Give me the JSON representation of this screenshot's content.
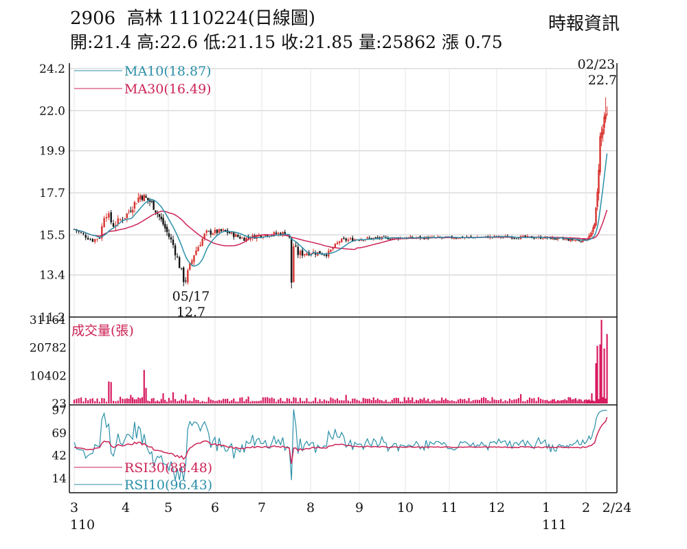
{
  "header": {
    "code": "2906",
    "name": "高林",
    "date_label": "1110224(日線圖)",
    "source": "時報資訊",
    "quote": {
      "open_label": "開:",
      "open": "21.4",
      "high_label": "高:",
      "high": "22.6",
      "low_label": "低:",
      "low": "21.15",
      "close_label": "收:",
      "close": "21.85",
      "volume_label": "量:",
      "volume": "25862",
      "change_label": "漲",
      "change": "0.75"
    }
  },
  "chart_data": [
    {
      "type": "candlestick",
      "panel": "price",
      "yticks": [
        "24.2",
        "22.0",
        "19.9",
        "17.7",
        "15.5",
        "13.4",
        "11.2"
      ],
      "ylim": [
        11.2,
        24.2
      ],
      "grid": true,
      "legend": [
        {
          "label": "MA10(18.87)",
          "color": "#2a8fa8"
        },
        {
          "label": "MA30(16.49)",
          "color": "#cc2255"
        }
      ],
      "annotations": [
        {
          "date": "05/17",
          "value": "12.7",
          "position": "below"
        },
        {
          "date": "02/23",
          "value": "22.7",
          "position": "above"
        }
      ],
      "anchors": [
        {
          "m": 0.0,
          "close": 15.8,
          "amp": 0.25
        },
        {
          "m": 0.35,
          "close": 15.2,
          "amp": 0.2
        },
        {
          "m": 0.5,
          "close": 15.4,
          "amp": 0.25
        },
        {
          "m": 0.6,
          "close": 16.8,
          "amp": 0.5
        },
        {
          "m": 0.75,
          "close": 16.0,
          "amp": 0.4
        },
        {
          "m": 1.0,
          "close": 16.5,
          "amp": 0.35
        },
        {
          "m": 1.35,
          "close": 17.6,
          "amp": 0.5
        },
        {
          "m": 1.6,
          "close": 17.2,
          "amp": 0.4
        },
        {
          "m": 1.85,
          "close": 16.2,
          "amp": 0.35
        },
        {
          "m": 2.1,
          "close": 15.0,
          "amp": 0.4
        },
        {
          "m": 2.35,
          "close": 13.0,
          "amp": 0.5
        },
        {
          "m": 2.55,
          "close": 14.5,
          "amp": 0.4
        },
        {
          "m": 2.8,
          "close": 15.6,
          "amp": 0.3
        },
        {
          "m": 3.2,
          "close": 15.7,
          "amp": 0.25
        },
        {
          "m": 3.6,
          "close": 15.3,
          "amp": 0.25
        },
        {
          "m": 4.0,
          "close": 15.5,
          "amp": 0.25
        },
        {
          "m": 4.5,
          "close": 15.6,
          "amp": 0.25
        },
        {
          "m": 4.75,
          "close": 14.5,
          "amp": 0.4
        },
        {
          "m": 5.0,
          "close": 14.6,
          "amp": 0.3
        },
        {
          "m": 5.35,
          "close": 14.5,
          "amp": 0.25
        },
        {
          "m": 5.6,
          "close": 15.2,
          "amp": 0.2
        },
        {
          "m": 6.0,
          "close": 15.3,
          "amp": 0.2
        },
        {
          "m": 7.0,
          "close": 15.35,
          "amp": 0.15
        },
        {
          "m": 8.0,
          "close": 15.35,
          "amp": 0.15
        },
        {
          "m": 9.0,
          "close": 15.4,
          "amp": 0.15
        },
        {
          "m": 10.0,
          "close": 15.35,
          "amp": 0.15
        },
        {
          "m": 10.9,
          "close": 15.2,
          "amp": 0.15
        },
        {
          "m": 11.2,
          "close": 15.5,
          "amp": 0.3
        },
        {
          "m": 11.35,
          "close": 17.0,
          "amp": 0.6
        },
        {
          "m": 11.45,
          "close": 20.5,
          "amp": 0.7
        },
        {
          "m": 11.55,
          "close": 21.1,
          "amp": 0.8
        },
        {
          "m": 11.68,
          "close": 21.85,
          "amp": 0.7
        }
      ]
    },
    {
      "type": "bar",
      "panel": "volume",
      "title": "成交量(張)",
      "yticks": [
        "31161",
        "20782",
        "10402",
        "23"
      ],
      "ylim": [
        0,
        31161
      ],
      "spikes": [
        {
          "m": 0.68,
          "value": 8200
        },
        {
          "m": 0.72,
          "value": 8000
        },
        {
          "m": 0.9,
          "value": 2500
        },
        {
          "m": 1.1,
          "value": 3200
        },
        {
          "m": 1.42,
          "value": 12500
        },
        {
          "m": 1.48,
          "value": 5800
        },
        {
          "m": 1.9,
          "value": 3800
        },
        {
          "m": 2.1,
          "value": 4200
        },
        {
          "m": 2.35,
          "value": 3400
        },
        {
          "m": 3.7,
          "value": 2600
        },
        {
          "m": 5.75,
          "value": 3200
        },
        {
          "m": 7.5,
          "value": 1800
        },
        {
          "m": 9.5,
          "value": 3500
        },
        {
          "m": 11.2,
          "value": 3800
        },
        {
          "m": 11.3,
          "value": 15000
        },
        {
          "m": 11.38,
          "value": 21500
        },
        {
          "m": 11.45,
          "value": 22000
        },
        {
          "m": 11.52,
          "value": 31161
        },
        {
          "m": 11.6,
          "value": 20500
        },
        {
          "m": 11.68,
          "value": 25862
        }
      ]
    },
    {
      "type": "line",
      "panel": "rsi",
      "yticks": [
        "97",
        "69",
        "42",
        "14"
      ],
      "ylim": [
        0,
        100
      ],
      "series": [
        {
          "name": "RSI30(88.48)",
          "color": "#cc2255"
        },
        {
          "name": "RSI10(96.43)",
          "color": "#2a8fa8"
        }
      ]
    }
  ],
  "x_axis": {
    "labels": [
      "3",
      "4",
      "5",
      "6",
      "7",
      "8",
      "9",
      "10",
      "11",
      "12",
      "1",
      "2",
      "2/24"
    ],
    "year_labels": [
      "110",
      "111"
    ]
  }
}
